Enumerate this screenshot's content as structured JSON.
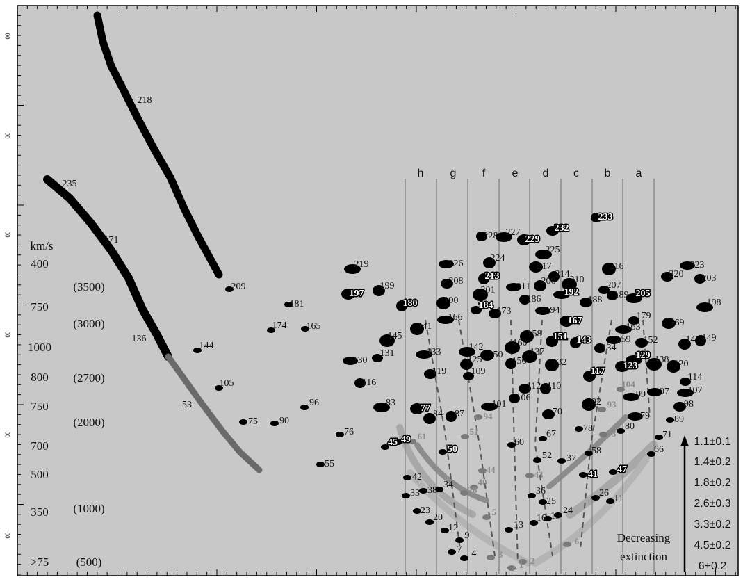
{
  "frame_labels": [
    "00",
    "00",
    "00",
    "00",
    "00",
    "00"
  ],
  "velocity_header": "km/s",
  "velocity_labels": [
    "400",
    "750",
    "1000",
    "800",
    "750",
    "700",
    "500",
    "350",
    ">75"
  ],
  "distance_labels": [
    "(3500)",
    "(3000)",
    "(2700)",
    "(2000)",
    "(1000)",
    "(500)"
  ],
  "column_labels": [
    "h",
    "g",
    "f",
    "e",
    "d",
    "c",
    "b",
    "a"
  ],
  "cloud_labels": [
    "218",
    "235",
    "171",
    "209",
    "136",
    "144",
    "181",
    "174",
    "165",
    "105",
    "53",
    "96",
    "90",
    "75",
    "76",
    "55",
    "219",
    "197",
    "199",
    "180",
    "145",
    "141",
    "131",
    "133",
    "130",
    "119",
    "116",
    "83",
    "77",
    "84",
    "87",
    "45",
    "49",
    "61",
    "50",
    "42",
    "33",
    "38",
    "34",
    "23",
    "20",
    "12",
    "9",
    "7",
    "4",
    "3",
    "226",
    "208",
    "228",
    "227",
    "229",
    "224",
    "213",
    "201",
    "190",
    "184",
    "166",
    "211",
    "173",
    "186",
    "142",
    "150",
    "125",
    "156",
    "160",
    "158",
    "109",
    "101",
    "94",
    "112",
    "106",
    "51",
    "44",
    "40",
    "28",
    "5",
    "60",
    "13",
    "1",
    "2",
    "232",
    "233",
    "225",
    "217",
    "206",
    "214",
    "210",
    "216",
    "207",
    "192",
    "194",
    "188",
    "189",
    "205",
    "167",
    "151",
    "143",
    "137",
    "132",
    "179",
    "163",
    "159",
    "152",
    "134",
    "129",
    "123",
    "117",
    "110",
    "104",
    "92",
    "93",
    "99",
    "79",
    "70",
    "78",
    "80",
    "73",
    "67",
    "71",
    "66",
    "58",
    "52",
    "37",
    "41",
    "47",
    "43",
    "36",
    "25",
    "26",
    "11",
    "16",
    "19",
    "24",
    "6",
    "223",
    "220",
    "203",
    "198",
    "169",
    "148",
    "149",
    "138",
    "120",
    "114",
    "107",
    "97",
    "98",
    "89"
  ],
  "extinction_legend": {
    "title_lines": [
      "Decreasing",
      "extinction"
    ],
    "items": [
      "1.1±0.1",
      "1.4±0.2",
      "1.8±0.2",
      "2.6±0.3",
      "3.3±0.2",
      "4.5±0.2",
      "6+0.2"
    ]
  }
}
